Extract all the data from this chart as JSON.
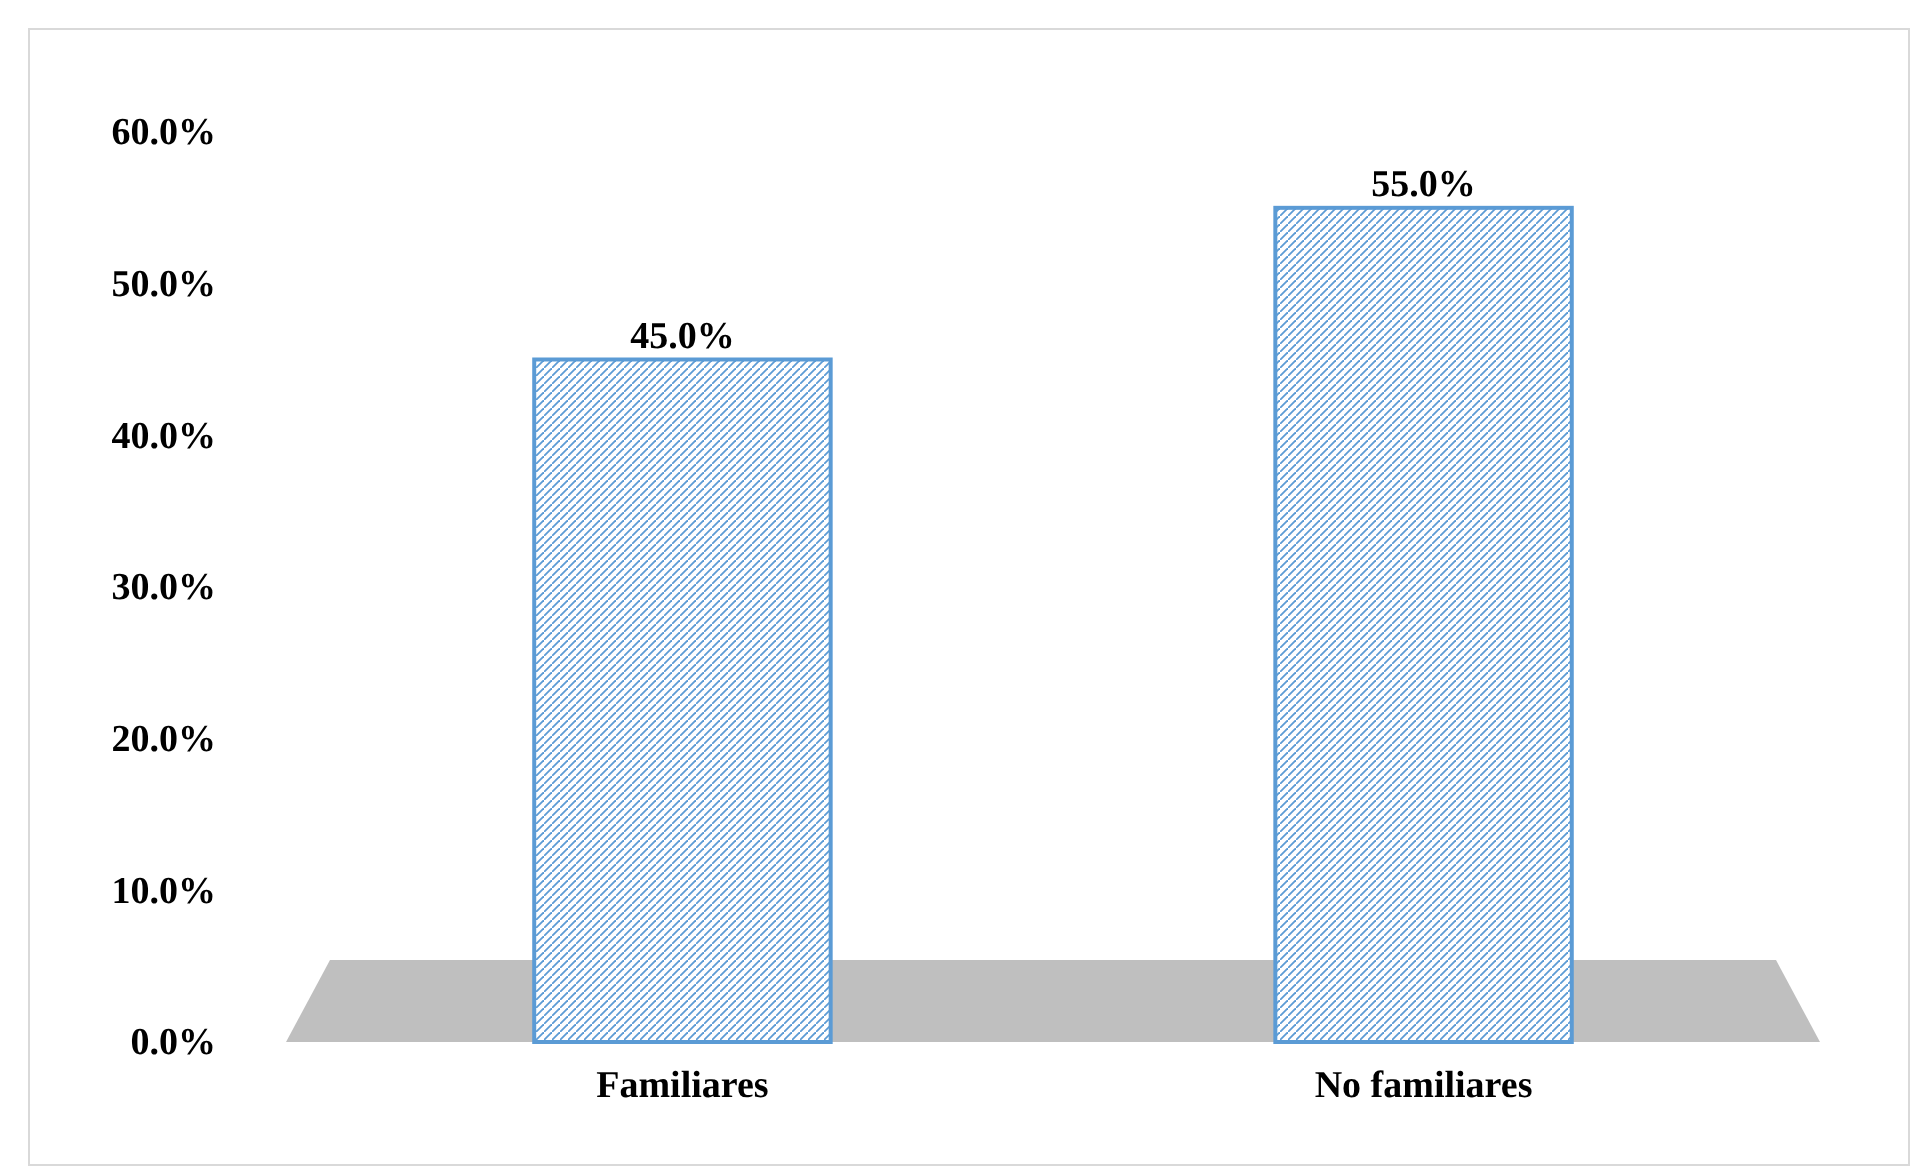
{
  "chart_data": {
    "type": "bar",
    "categories": [
      "Familiares",
      "No familiares"
    ],
    "values": [
      45,
      55
    ],
    "color": "#5b9bd5",
    "value_labels": [
      "45.0%",
      "55.0%"
    ],
    "ylim": [
      0,
      60
    ],
    "yticks": [
      {
        "value": 0,
        "label": "0.0%"
      },
      {
        "value": 10,
        "label": "10.0%"
      },
      {
        "value": 20,
        "label": "20.0%"
      },
      {
        "value": 30,
        "label": "30.0%"
      },
      {
        "value": 40,
        "label": "40.0%"
      },
      {
        "value": 50,
        "label": "50.0%"
      },
      {
        "value": 60,
        "label": "60.0%"
      }
    ],
    "grid": false
  }
}
